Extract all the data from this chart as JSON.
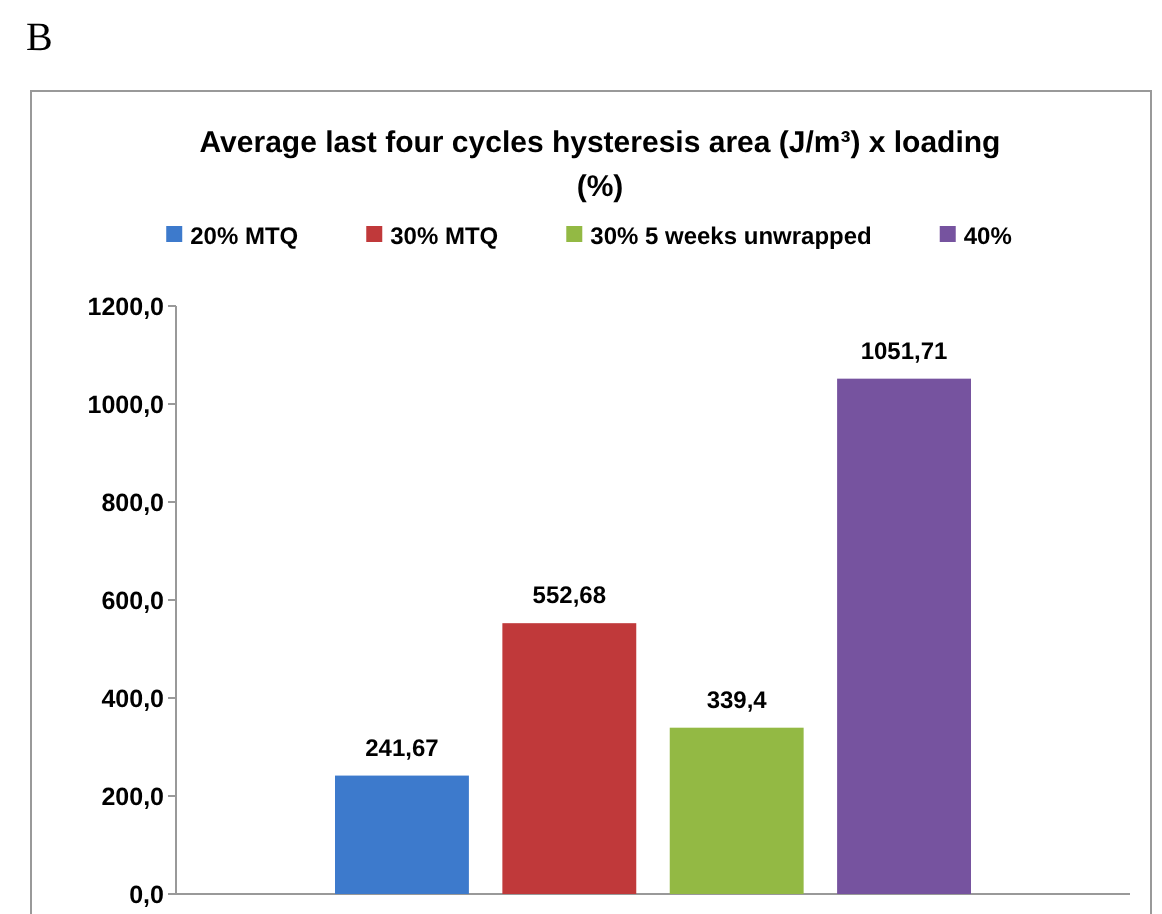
{
  "chart_data": {
    "type": "bar",
    "title": "Average last four cycles hysteresis area (J/m³) x loading (%)",
    "annotations": [
      "B"
    ],
    "categories": [
      null
    ],
    "series": [
      {
        "name": "20% MTQ",
        "color": "#3d7acc",
        "values": [
          241.67
        ],
        "value_labels": [
          "241,67"
        ]
      },
      {
        "name": "30% MTQ",
        "color": "#c0393a",
        "values": [
          552.68
        ],
        "value_labels": [
          "552,68"
        ]
      },
      {
        "name": "30% 5 weeks unwrapped",
        "color": "#93b944",
        "values": [
          339.4
        ],
        "value_labels": [
          "339,4"
        ]
      },
      {
        "name": "40%",
        "color": "#76539f",
        "values": [
          1051.71
        ],
        "value_labels": [
          "1051,71"
        ]
      }
    ],
    "ylim": [
      0,
      1200
    ],
    "yticks": [
      {
        "value": 0,
        "label": "0,0"
      },
      {
        "value": 200,
        "label": "200,0"
      },
      {
        "value": 400,
        "label": "400,0"
      },
      {
        "value": 600,
        "label": "600,0"
      },
      {
        "value": 800,
        "label": "800,0"
      },
      {
        "value": 1000,
        "label": "1000,0"
      },
      {
        "value": 1200,
        "label": "1200,0"
      }
    ],
    "grid": false,
    "legend": "top"
  }
}
